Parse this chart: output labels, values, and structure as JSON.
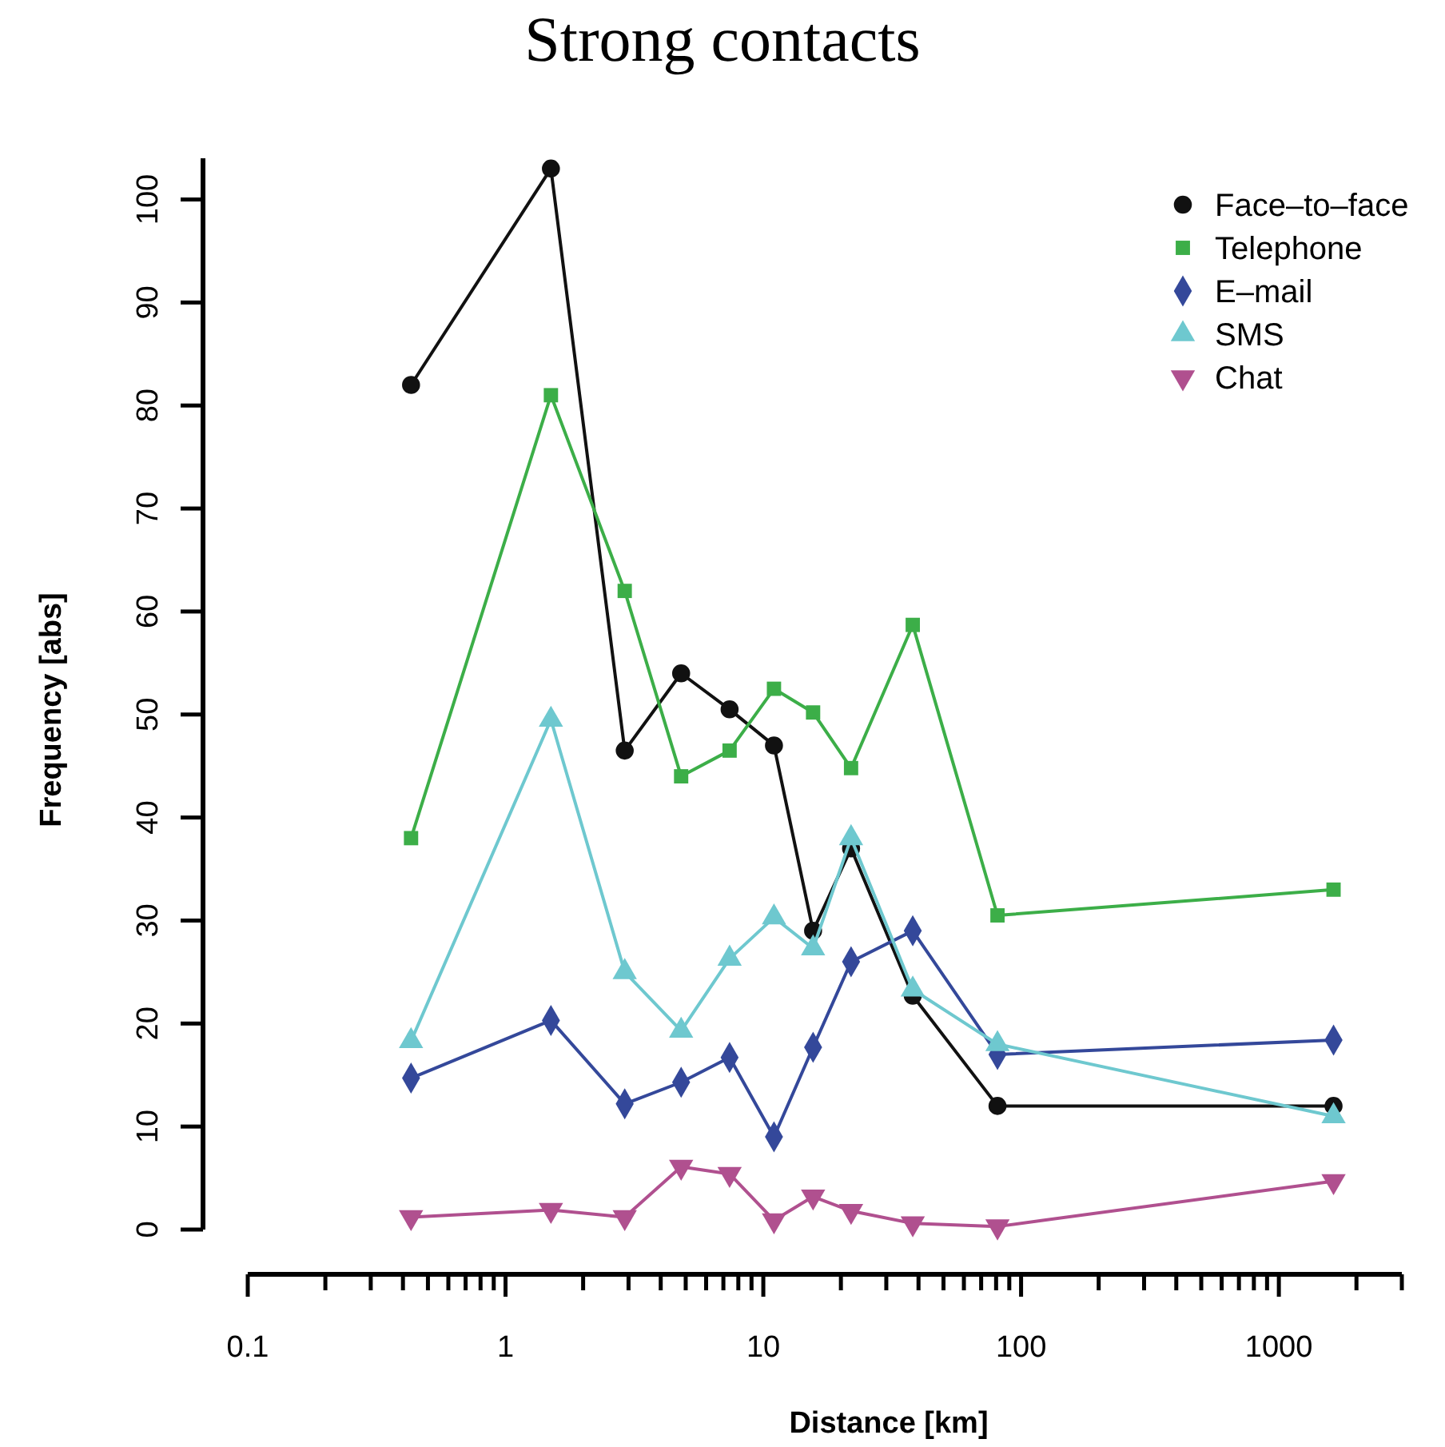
{
  "chart_data": {
    "type": "line",
    "title": "Strong contacts",
    "xlabel": "Distance [km]",
    "ylabel": "Frequency [abs]",
    "log": "x",
    "x": [
      0.43,
      1.5,
      2.9,
      4.8,
      7.4,
      11,
      15.6,
      21.9,
      38,
      81,
      1630
    ],
    "xlim": [
      0.1,
      3000
    ],
    "xticks": [
      0.1,
      1,
      10,
      100,
      1000
    ],
    "ylim": [
      0,
      104
    ],
    "yticks": [
      0,
      10,
      20,
      30,
      40,
      50,
      60,
      70,
      80,
      90,
      100
    ],
    "grid": false,
    "legend": "top right",
    "series": [
      {
        "name": "Face–to–face",
        "color": "#111111",
        "marker": "circle",
        "values": [
          82,
          103,
          46.5,
          54,
          50.5,
          47,
          29,
          37,
          22.7,
          12,
          12
        ]
      },
      {
        "name": "Telephone",
        "color": "#3cae48",
        "marker": "square",
        "values": [
          38,
          81,
          62,
          44,
          46.5,
          52.5,
          50.2,
          44.8,
          58.7,
          30.5,
          33
        ]
      },
      {
        "name": "E–mail",
        "color": "#34489a",
        "marker": "diamond",
        "values": [
          14.7,
          20.3,
          12.2,
          14.3,
          16.7,
          9,
          17.7,
          26,
          29,
          17,
          18.4
        ]
      },
      {
        "name": "SMS",
        "color": "#6ec8cf",
        "marker": "triangle",
        "values": [
          18.3,
          49.5,
          25,
          19.3,
          26.3,
          30.3,
          27.3,
          38,
          23.3,
          18,
          11
        ]
      },
      {
        "name": "Chat",
        "color": "#b0508f",
        "marker": "triangle-down",
        "values": [
          1.2,
          1.9,
          1.2,
          6.1,
          5.4,
          0.9,
          3.2,
          1.8,
          0.6,
          0.3,
          4.7
        ]
      }
    ]
  }
}
